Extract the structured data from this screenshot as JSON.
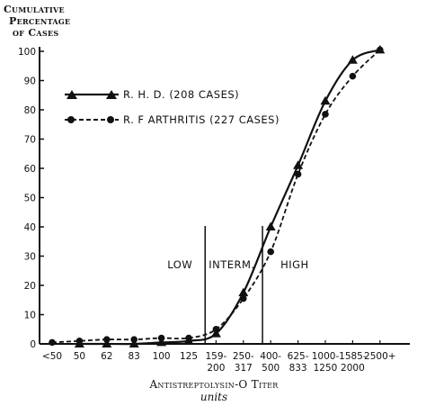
{
  "chart_data": {
    "type": "line",
    "ylabel": [
      "Cumulative",
      "Percentage",
      "of Cases"
    ],
    "xlabel": "Antistreptolysin-O Titer",
    "xunits": "units",
    "ylim": [
      0,
      100
    ],
    "yticks": [
      "0",
      "10",
      "20",
      "30",
      "40",
      "50",
      "60",
      "70",
      "80",
      "90",
      "100"
    ],
    "categories": [
      [
        "<50"
      ],
      [
        "50"
      ],
      [
        "62"
      ],
      [
        "83"
      ],
      [
        "100"
      ],
      [
        "125"
      ],
      [
        "159-",
        "200"
      ],
      [
        "250-",
        "317"
      ],
      [
        "400-",
        "500"
      ],
      [
        "625-",
        "833"
      ],
      [
        "1000-",
        "1250"
      ],
      [
        "1585-",
        "2000"
      ],
      [
        "2500+"
      ]
    ],
    "series": [
      {
        "name": "R. H. D. (208 CASES)",
        "style": "solid",
        "marker": "triangle",
        "points": [
          {
            "x": 1,
            "y": 0
          },
          {
            "x": 2,
            "y": 0
          },
          {
            "x": 3,
            "y": 0
          },
          {
            "x": 4,
            "y": 0.5
          },
          {
            "x": 5,
            "y": 1
          },
          {
            "x": 6,
            "y": 3.5
          },
          {
            "x": 7,
            "y": 17.5
          },
          {
            "x": 8,
            "y": 40
          },
          {
            "x": 9,
            "y": 61
          },
          {
            "x": 10,
            "y": 83
          },
          {
            "x": 11,
            "y": 97
          },
          {
            "x": 12,
            "y": 100.5
          }
        ]
      },
      {
        "name": "R. F ARTHRITIS (227 CASES)",
        "style": "dashed",
        "marker": "circle",
        "points": [
          {
            "x": 0,
            "y": 0.5
          },
          {
            "x": 1,
            "y": 1
          },
          {
            "x": 2,
            "y": 1.5
          },
          {
            "x": 3,
            "y": 1.5
          },
          {
            "x": 4,
            "y": 2
          },
          {
            "x": 5,
            "y": 2
          },
          {
            "x": 6,
            "y": 5
          },
          {
            "x": 7,
            "y": 15.5
          },
          {
            "x": 8,
            "y": 31.5
          },
          {
            "x": 9,
            "y": 58
          },
          {
            "x": 10,
            "y": 78.5
          },
          {
            "x": 11,
            "y": 91.5
          },
          {
            "x": 12,
            "y": 100.5
          }
        ]
      }
    ],
    "zones": [
      {
        "label": "LOW",
        "boundary_x": 5.6
      },
      {
        "label": "INTERM.",
        "boundary_x": 7.7
      },
      {
        "label": "HIGH"
      }
    ]
  }
}
